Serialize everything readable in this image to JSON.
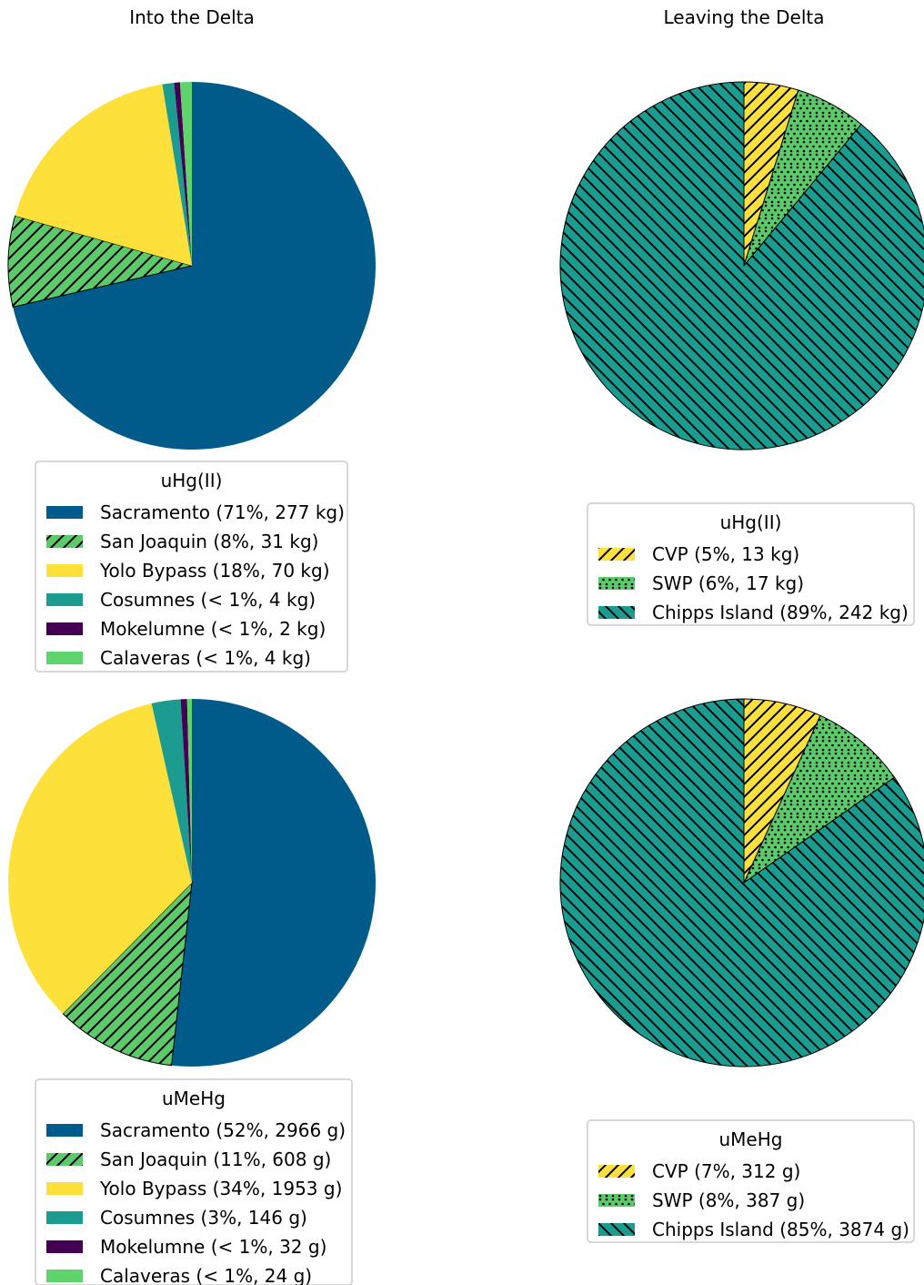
{
  "columns": [
    "Into the Delta",
    "Leaving the Delta"
  ],
  "colors": {
    "sacramento": "#005a8a",
    "san_joaquin": "#5bcb6a",
    "yolo": "#fde13a",
    "cosumnes": "#1c9c90",
    "mokelumne": "#440154",
    "calaveras": "#5fd46c",
    "cvp": "#fde13a",
    "swp": "#5bcb6a",
    "chipps": "#1c9c90"
  },
  "chart_data": [
    {
      "type": "pie",
      "id": "into-uhg",
      "legend_title": "uHg(II)",
      "slices": [
        {
          "label": "Sacramento (71%, 277 kg)",
          "value": 277,
          "color_key": "sacramento",
          "hatch": "none"
        },
        {
          "label": "San Joaquin (8%, 31 kg)",
          "value": 31,
          "color_key": "san_joaquin",
          "hatch": "diag-right"
        },
        {
          "label": "Yolo Bypass (18%, 70 kg)",
          "value": 70,
          "color_key": "yolo",
          "hatch": "none"
        },
        {
          "label": "Cosumnes (< 1%, 4 kg)",
          "value": 4,
          "color_key": "cosumnes",
          "hatch": "none"
        },
        {
          "label": "Mokelumne (< 1%, 2 kg)",
          "value": 2,
          "color_key": "mokelumne",
          "hatch": "none"
        },
        {
          "label": "Calaveras (< 1%, 4 kg)",
          "value": 4,
          "color_key": "calaveras",
          "hatch": "none"
        }
      ]
    },
    {
      "type": "pie",
      "id": "leaving-uhg",
      "legend_title": "uHg(II)",
      "slices": [
        {
          "label": "CVP (5%, 13 kg)",
          "value": 13,
          "color_key": "cvp",
          "hatch": "diag-right"
        },
        {
          "label": "SWP (6%, 17 kg)",
          "value": 17,
          "color_key": "swp",
          "hatch": "dots"
        },
        {
          "label": "Chipps Island (89%, 242 kg)",
          "value": 242,
          "color_key": "chipps",
          "hatch": "diag-left"
        }
      ]
    },
    {
      "type": "pie",
      "id": "into-umehg",
      "legend_title": "uMeHg",
      "slices": [
        {
          "label": "Sacramento (52%, 2966 g)",
          "value": 2966,
          "color_key": "sacramento",
          "hatch": "none"
        },
        {
          "label": "San Joaquin (11%, 608 g)",
          "value": 608,
          "color_key": "san_joaquin",
          "hatch": "diag-right"
        },
        {
          "label": "Yolo Bypass (34%, 1953 g)",
          "value": 1953,
          "color_key": "yolo",
          "hatch": "none"
        },
        {
          "label": "Cosumnes (3%, 146 g)",
          "value": 146,
          "color_key": "cosumnes",
          "hatch": "none"
        },
        {
          "label": "Mokelumne (< 1%, 32 g)",
          "value": 32,
          "color_key": "mokelumne",
          "hatch": "none"
        },
        {
          "label": "Calaveras (< 1%, 24 g)",
          "value": 24,
          "color_key": "calaveras",
          "hatch": "none"
        }
      ]
    },
    {
      "type": "pie",
      "id": "leaving-umehg",
      "legend_title": "uMeHg",
      "slices": [
        {
          "label": "CVP (7%, 312 g)",
          "value": 312,
          "color_key": "cvp",
          "hatch": "diag-right"
        },
        {
          "label": "SWP (8%, 387 g)",
          "value": 387,
          "color_key": "swp",
          "hatch": "dots"
        },
        {
          "label": "Chipps Island (85%, 3874 g)",
          "value": 3874,
          "color_key": "chipps",
          "hatch": "diag-left"
        }
      ]
    }
  ]
}
